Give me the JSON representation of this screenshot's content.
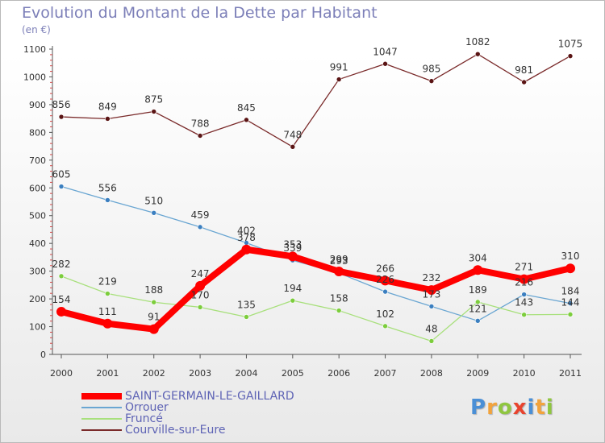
{
  "header": {
    "title": "Evolution du Montant de la Dette par Habitant",
    "unit": "(en €)"
  },
  "brand": {
    "text": "Proxiti",
    "colors": [
      "#4a8fd6",
      "#f2a33c",
      "#8fc640",
      "#e8432e",
      "#4a8fd6",
      "#f2a33c",
      "#8fc640"
    ]
  },
  "chart_data": {
    "type": "line",
    "title": "Evolution du Montant de la Dette par Habitant",
    "subtitle": "(en €)",
    "xlabel": "",
    "ylabel": "",
    "ylim": [
      0,
      1100
    ],
    "yticks": [
      0,
      100,
      200,
      300,
      400,
      500,
      600,
      700,
      800,
      900,
      1000,
      1100
    ],
    "grid": false,
    "legend_position": "bottom-left",
    "x": [
      "2000",
      "2001",
      "2002",
      "2003",
      "2004",
      "2005",
      "2006",
      "2007",
      "2008",
      "2009",
      "2010",
      "2011"
    ],
    "series": [
      {
        "name": "SAINT-GERMAIN-LE-GAILLARD",
        "color": "#ff0000",
        "marker_color": "#d10000",
        "width": 8,
        "values": [
          154,
          111,
          91,
          247,
          378,
          353,
          299,
          266,
          232,
          304,
          271,
          310
        ],
        "labels": [
          "154",
          "111",
          "91",
          "247",
          "378",
          "353",
          "299",
          "266",
          "232",
          "304",
          "271",
          "310"
        ]
      },
      {
        "name": "Orrouer",
        "color": "#6aa6d2",
        "marker_color": "#3b7fc0",
        "width": 1.3,
        "values": [
          605,
          556,
          510,
          459,
          402,
          339,
          293,
          226,
          173,
          121,
          216,
          184
        ],
        "labels": [
          "605",
          "556",
          "510",
          "459",
          "402",
          "339",
          "293",
          "226",
          "173",
          "121",
          "216",
          "184"
        ]
      },
      {
        "name": "Fruncé",
        "color": "#a8e07c",
        "marker_color": "#7ccd3c",
        "width": 1.3,
        "values": [
          282,
          219,
          188,
          170,
          135,
          194,
          158,
          102,
          48,
          189,
          143,
          144
        ],
        "labels": [
          "282",
          "219",
          "188",
          "170",
          "135",
          "194",
          "158",
          "102",
          "48",
          "189",
          "143",
          "144"
        ]
      },
      {
        "name": "Courville-sur-Eure",
        "color": "#7a2a2a",
        "marker_color": "#5a1414",
        "width": 1.3,
        "values": [
          856,
          849,
          875,
          788,
          845,
          748,
          991,
          1047,
          985,
          1082,
          981,
          1075
        ],
        "labels": [
          "856",
          "849",
          "875",
          "788",
          "845",
          "748",
          "991",
          "1047",
          "985",
          "1082",
          "981",
          "1075"
        ]
      }
    ]
  }
}
